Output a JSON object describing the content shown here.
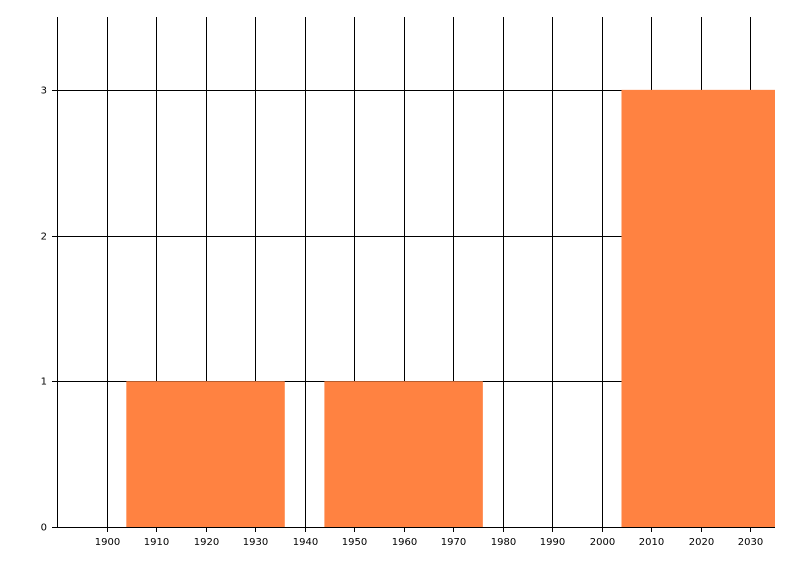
{
  "chart_data": {
    "type": "bar",
    "x": [
      1920,
      1960,
      2020
    ],
    "values": [
      1,
      1,
      3
    ],
    "bar_width": 32,
    "color": "#ff8241",
    "xlim": [
      1890,
      2035
    ],
    "xticks": [
      1900,
      1910,
      1920,
      1930,
      1940,
      1950,
      1960,
      1970,
      1980,
      1990,
      2000,
      2010,
      2020,
      2030
    ],
    "ylim": [
      0,
      3.5
    ],
    "yticks": [
      0,
      1,
      2,
      3
    ],
    "grid": true
  }
}
